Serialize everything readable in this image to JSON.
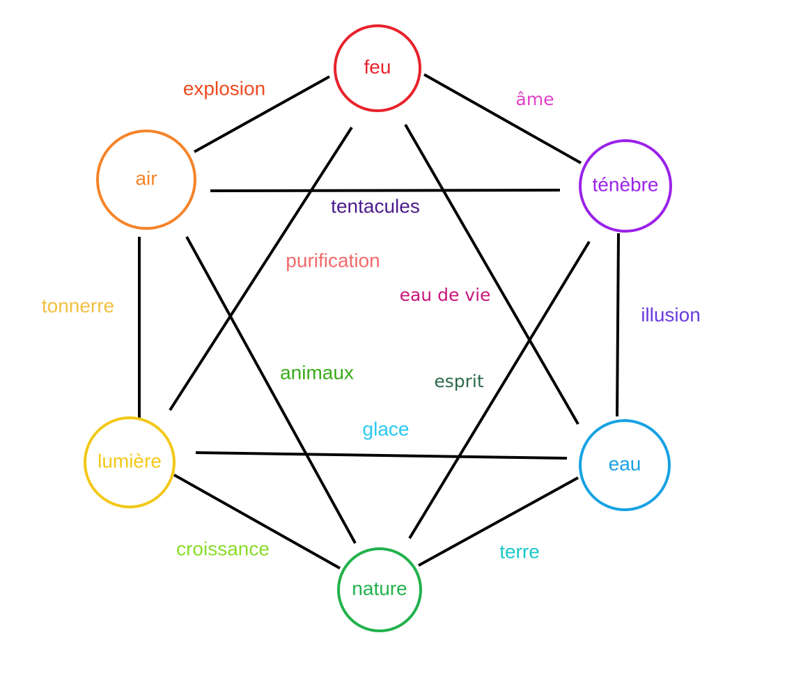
{
  "nodes": [
    {
      "id": "feu",
      "label": "feu",
      "color": "#e8222b"
    },
    {
      "id": "air",
      "label": "air",
      "color": "#f5842a"
    },
    {
      "id": "tenebre",
      "label": "ténèbre",
      "color": "#9b22e8"
    },
    {
      "id": "lumiere",
      "label": "lumière",
      "color": "#f2c817"
    },
    {
      "id": "eau",
      "label": "eau",
      "color": "#16a2e3"
    },
    {
      "id": "nature",
      "label": "nature",
      "color": "#22b14c"
    }
  ],
  "edges": [
    {
      "from": "feu",
      "to": "air",
      "label": "explosion",
      "color": "#ed4a1f"
    },
    {
      "from": "feu",
      "to": "tenebre",
      "label": "âme",
      "color": "#e040c8"
    },
    {
      "from": "air",
      "to": "tenebre",
      "label": "tentacules",
      "color": "#4a1a8a"
    },
    {
      "from": "feu",
      "to": "lumiere",
      "label": "purification",
      "color": "#f26a6a"
    },
    {
      "from": "feu",
      "to": "eau",
      "label": "eau de vie",
      "color": "#c8157a"
    },
    {
      "from": "air",
      "to": "lumiere",
      "label": "tonnerre",
      "color": "#f0c040"
    },
    {
      "from": "tenebre",
      "to": "eau",
      "label": "illusion",
      "color": "#6a3ae0"
    },
    {
      "from": "air",
      "to": "nature",
      "label": "animaux",
      "color": "#3aaa1a"
    },
    {
      "from": "tenebre",
      "to": "nature",
      "label": "esprit",
      "color": "#2a6a4a"
    },
    {
      "from": "lumiere",
      "to": "eau",
      "label": "glace",
      "color": "#28c8f0"
    },
    {
      "from": "lumiere",
      "to": "nature",
      "label": "croissance",
      "color": "#8adc2a"
    },
    {
      "from": "eau",
      "to": "nature",
      "label": "terre",
      "color": "#1ac8c8"
    }
  ]
}
